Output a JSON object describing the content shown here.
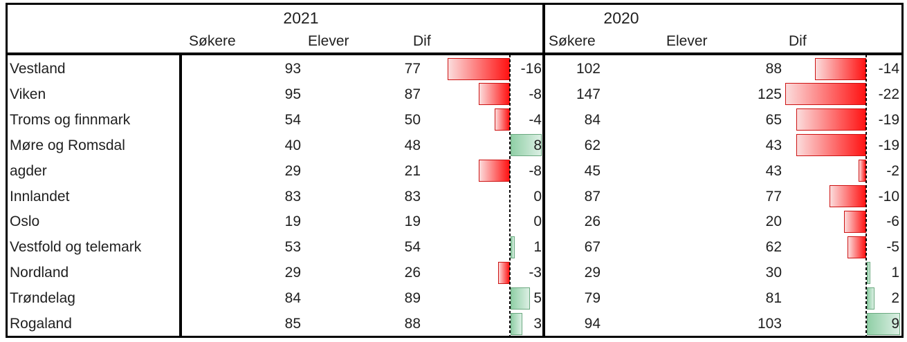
{
  "header": {
    "sections": [
      {
        "year": "2021",
        "cols": [
          "Søkere",
          "Elever",
          "Dif"
        ]
      },
      {
        "year": "2020",
        "cols": [
          "Søkere",
          "Elever",
          "Dif"
        ]
      }
    ]
  },
  "chart_data": {
    "type": "table",
    "title": "",
    "categories": [
      "Vestland",
      "Viken",
      "Troms og finnmark",
      "Møre og Romsdal",
      "agder",
      "Innlandet",
      "Oslo",
      "Vestfold og telemark",
      "Nordland",
      "Trøndelag",
      "Rogaland"
    ],
    "series": [
      {
        "section": "2021",
        "name": "Søkere",
        "values": [
          93,
          95,
          54,
          40,
          29,
          83,
          19,
          53,
          29,
          84,
          85
        ]
      },
      {
        "section": "2021",
        "name": "Elever",
        "values": [
          77,
          87,
          50,
          48,
          21,
          83,
          19,
          54,
          26,
          89,
          88
        ]
      },
      {
        "section": "2021",
        "name": "Dif",
        "values": [
          -16,
          -8,
          -4,
          8,
          -8,
          0,
          0,
          1,
          -3,
          5,
          3
        ]
      },
      {
        "section": "2020",
        "name": "Søkere",
        "values": [
          102,
          147,
          84,
          62,
          45,
          87,
          26,
          67,
          29,
          79,
          94
        ]
      },
      {
        "section": "2020",
        "name": "Elever",
        "values": [
          88,
          125,
          65,
          43,
          43,
          77,
          20,
          62,
          30,
          81,
          103
        ]
      },
      {
        "section": "2020",
        "name": "Dif",
        "values": [
          -14,
          -22,
          -19,
          -19,
          -2,
          -10,
          -6,
          -5,
          1,
          2,
          9
        ]
      }
    ],
    "dif_bar_style": "conditional-formatting data bars on Dif columns: negative values red bars extending left of dashed zero axis, positive values green bars extending right; zero renders no bar"
  },
  "colors": {
    "negative_bar_border": "#cc1111",
    "negative_bar_fill_light": "#fbdcdc",
    "negative_bar_fill_strong": "#ff1212",
    "positive_bar_border": "#6ba980",
    "positive_bar_fill_strong": "#90cfa6",
    "positive_bar_fill_light": "#dcefe4",
    "grid_border": "#000000",
    "text": "#1f1f1f",
    "background": "#ffffff"
  }
}
